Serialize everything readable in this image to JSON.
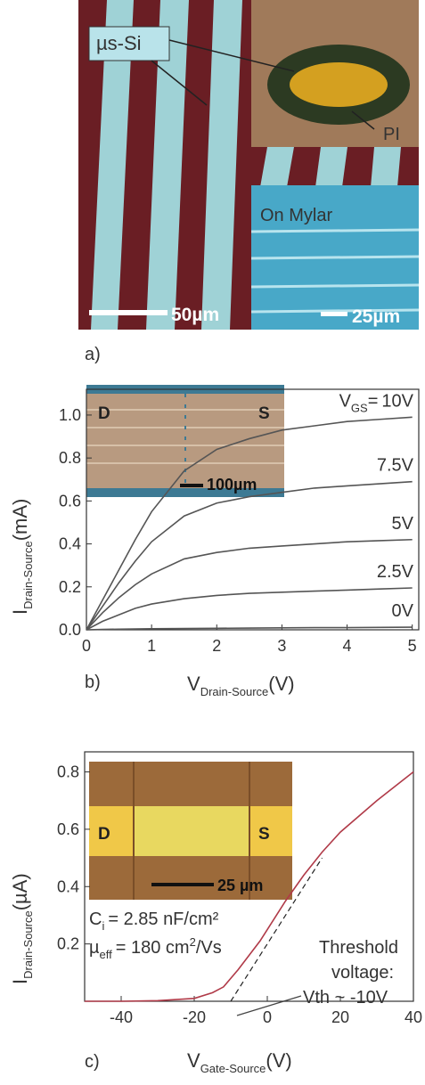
{
  "panel_a": {
    "label": "a)",
    "material": "µs-Si",
    "substrate": "PI",
    "inset": "On Mylar",
    "scale_main": "50µm",
    "scale_inset": "25µm"
  },
  "chart_data": [
    {
      "type": "line",
      "panel": "b)",
      "x_label": {
        "main": "V",
        "sub": "Drain-Source",
        "unit": "(V)"
      },
      "y_label": {
        "main": "I",
        "sub": "Drain-Source",
        "unit": "(mA)"
      },
      "series_prefix": {
        "main": "V",
        "sub": "GS",
        "eq": "="
      },
      "inset": {
        "left": "D",
        "right": "S",
        "scale": "100µm"
      },
      "x": [
        0,
        0.25,
        0.5,
        0.75,
        1,
        1.5,
        2,
        2.5,
        3,
        3.5,
        4,
        4.5,
        5
      ],
      "series": [
        {
          "name": "10V",
          "color": "#555555",
          "values": [
            0,
            0.14,
            0.28,
            0.42,
            0.55,
            0.74,
            0.84,
            0.89,
            0.93,
            0.95,
            0.97,
            0.98,
            0.99
          ]
        },
        {
          "name": "7.5V",
          "color": "#555555",
          "values": [
            0,
            0.11,
            0.22,
            0.32,
            0.41,
            0.53,
            0.59,
            0.62,
            0.64,
            0.66,
            0.67,
            0.68,
            0.69
          ]
        },
        {
          "name": "5V",
          "color": "#555555",
          "values": [
            0,
            0.08,
            0.15,
            0.21,
            0.26,
            0.33,
            0.36,
            0.38,
            0.39,
            0.4,
            0.41,
            0.415,
            0.42
          ]
        },
        {
          "name": "2.5V",
          "color": "#555555",
          "values": [
            0,
            0.04,
            0.07,
            0.1,
            0.12,
            0.145,
            0.16,
            0.17,
            0.175,
            0.18,
            0.185,
            0.19,
            0.195
          ]
        },
        {
          "name": "0V",
          "color": "#555555",
          "values": [
            0,
            0.002,
            0.003,
            0.004,
            0.005,
            0.006,
            0.007,
            0.008,
            0.009,
            0.01,
            0.01,
            0.011,
            0.012
          ]
        }
      ],
      "xlim": [
        0,
        5.1
      ],
      "ylim": [
        0,
        1.12
      ],
      "xticks": [
        0,
        1,
        2,
        3,
        4,
        5
      ],
      "yticks": [
        {
          "value": 0,
          "label": "0.0"
        },
        0.2,
        0.4,
        0.6,
        0.8,
        {
          "value": 1,
          "label": "1.0"
        }
      ]
    },
    {
      "type": "line",
      "panel": "c)",
      "x_label": {
        "main": "V",
        "sub": "Gate-Source",
        "unit": "(V)"
      },
      "y_label": {
        "main": "I",
        "sub": "Drain-Source",
        "unit": "(µA)"
      },
      "inset": {
        "left": "D",
        "right": "S",
        "scale": "25 µm"
      },
      "capacitance": {
        "main": "C",
        "sub": "i",
        "rest": "= 2.85 nF/cm²"
      },
      "mobility": {
        "main": "µ",
        "sub": "eff",
        "rest": "= 180 cm",
        "sup": "2",
        "tail": "/Vs"
      },
      "threshold": [
        "Threshold",
        "voltage:",
        "Vth ~ -10V"
      ],
      "x": [
        -50,
        -40,
        -30,
        -20,
        -15,
        -12,
        -10,
        -8,
        -5,
        -2,
        0,
        5,
        10,
        15,
        20,
        30,
        40
      ],
      "series": [
        {
          "color": "#b03a48",
          "values": [
            0,
            0,
            0.002,
            0.01,
            0.03,
            0.05,
            0.08,
            0.11,
            0.16,
            0.21,
            0.25,
            0.35,
            0.44,
            0.52,
            0.59,
            0.7,
            0.8
          ]
        }
      ],
      "fit_line": {
        "x": [
          -10,
          15
        ],
        "values": [
          0,
          0.5
        ]
      },
      "xlim": [
        -50,
        40
      ],
      "ylim": [
        0,
        0.87
      ],
      "xticks": [
        -40,
        -20,
        0,
        20,
        40
      ],
      "yticks": [
        0.2,
        0.4,
        0.6,
        0.8
      ]
    }
  ]
}
